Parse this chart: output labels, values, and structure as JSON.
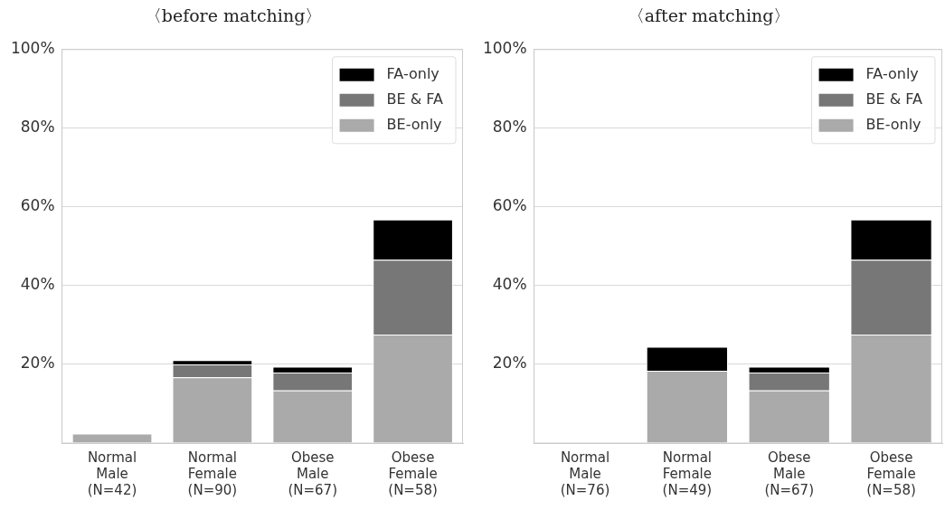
{
  "chart_data": [
    {
      "type": "bar",
      "title": "〈before matching〉",
      "stacked": true,
      "categories": [
        "Normal\nMale\n(N=42)",
        "Normal\nFemale\n(N=90)",
        "Obese\nMale\n(N=67)",
        "Obese\nFemale\n(N=58)"
      ],
      "series": [
        {
          "name": "BE-only",
          "color": "#aaaaaa",
          "values": [
            2.4,
            16.7,
            13.4,
            27.6
          ]
        },
        {
          "name": "BE & FA",
          "color": "#777777",
          "values": [
            0,
            3.3,
            4.5,
            19.0
          ]
        },
        {
          "name": "FA-only",
          "color": "#000000",
          "values": [
            0,
            1.1,
            1.5,
            10.2
          ]
        }
      ],
      "ylim": [
        0,
        100
      ],
      "yticks": [
        {
          "value": 0,
          "label": null
        },
        {
          "value": 20,
          "label": "20%"
        },
        {
          "value": 40,
          "label": "40%"
        },
        {
          "value": 60,
          "label": "60%"
        },
        {
          "value": 80,
          "label": "80%"
        },
        {
          "value": 100,
          "label": "100%"
        }
      ],
      "grid": "y",
      "legend": "top right"
    },
    {
      "type": "bar",
      "title": "〈after matching〉",
      "stacked": true,
      "categories": [
        "Normal\nMale\n(N=76)",
        "Normal\nFemale\n(N=49)",
        "Obese\nMale\n(N=67)",
        "Obese\nFemale\n(N=58)"
      ],
      "series": [
        {
          "name": "BE-only",
          "color": "#aaaaaa",
          "values": [
            0,
            18.4,
            13.4,
            27.6
          ]
        },
        {
          "name": "BE & FA",
          "color": "#777777",
          "values": [
            0,
            0,
            4.5,
            19.0
          ]
        },
        {
          "name": "FA-only",
          "color": "#000000",
          "values": [
            0,
            6.1,
            1.5,
            10.2
          ]
        }
      ],
      "ylim": [
        0,
        100
      ],
      "yticks": [
        {
          "value": 0,
          "label": null
        },
        {
          "value": 20,
          "label": "20%"
        },
        {
          "value": 40,
          "label": "40%"
        },
        {
          "value": 60,
          "label": "60%"
        },
        {
          "value": 80,
          "label": "80%"
        },
        {
          "value": 100,
          "label": "100%"
        }
      ],
      "grid": "y",
      "legend": "top right"
    }
  ]
}
